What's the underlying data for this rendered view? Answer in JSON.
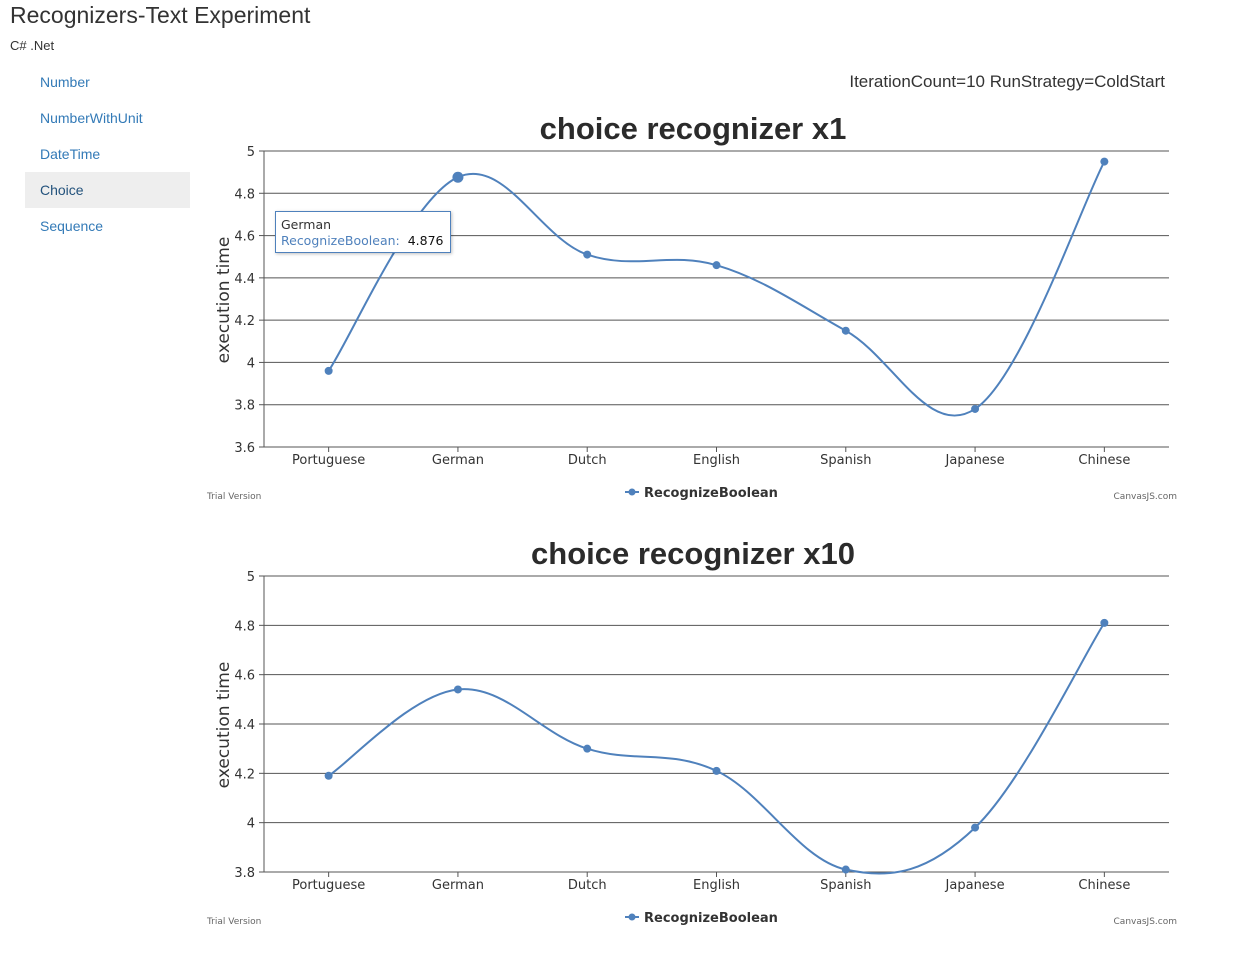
{
  "app": {
    "title": "Recognizers-Text Experiment",
    "subtitle": "C# .Net"
  },
  "sidebar": {
    "items": [
      {
        "label": "Number",
        "active": false
      },
      {
        "label": "NumberWithUnit",
        "active": false
      },
      {
        "label": "DateTime",
        "active": false
      },
      {
        "label": "Choice",
        "active": true
      },
      {
        "label": "Sequence",
        "active": false
      }
    ]
  },
  "run_info": "IterationCount=10 RunStrategy=ColdStart",
  "colors": {
    "series": "#4f81bc",
    "grid": "#555555"
  },
  "tooltip": {
    "category": "German",
    "series": "RecognizeBoolean:",
    "value": "4.876"
  },
  "chart_data": [
    {
      "type": "line",
      "title": "choice recognizer x1",
      "xlabel": "",
      "ylabel": "execution time",
      "categories": [
        "Portuguese",
        "German",
        "Dutch",
        "English",
        "Spanish",
        "Japanese",
        "Chinese"
      ],
      "series": [
        {
          "name": "RecognizeBoolean",
          "values": [
            3.96,
            4.876,
            4.51,
            4.46,
            4.15,
            3.78,
            4.95
          ]
        }
      ],
      "ylim": [
        3.6,
        5
      ],
      "yticks": [
        3.6,
        3.8,
        4,
        4.2,
        4.4,
        4.6,
        4.8,
        5
      ],
      "grid": true,
      "legend": "bottom",
      "highlight_index": 1,
      "credit_left": "Trial Version",
      "credit_right": "CanvasJS.com"
    },
    {
      "type": "line",
      "title": "choice recognizer x10",
      "xlabel": "",
      "ylabel": "execution time",
      "categories": [
        "Portuguese",
        "German",
        "Dutch",
        "English",
        "Spanish",
        "Japanese",
        "Chinese"
      ],
      "series": [
        {
          "name": "RecognizeBoolean",
          "values": [
            4.19,
            4.54,
            4.3,
            4.21,
            3.81,
            3.98,
            4.81
          ]
        }
      ],
      "ylim": [
        3.8,
        5
      ],
      "yticks": [
        3.8,
        4,
        4.2,
        4.4,
        4.6,
        4.8,
        5
      ],
      "grid": true,
      "legend": "bottom",
      "highlight_index": -1,
      "credit_left": "Trial Version",
      "credit_right": "CanvasJS.com"
    }
  ]
}
